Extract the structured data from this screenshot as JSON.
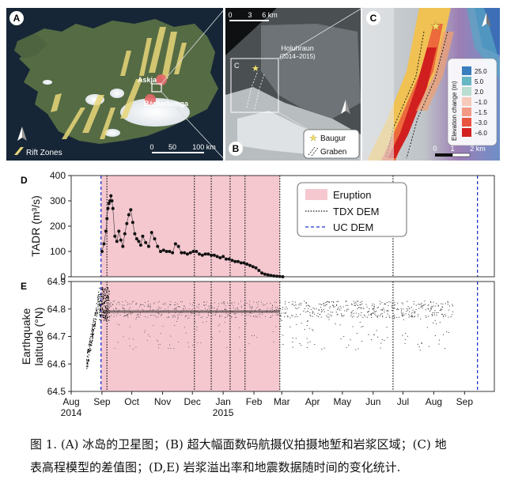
{
  "panel_labels": {
    "a": "A",
    "b": "B",
    "c": "C",
    "d": "D",
    "e": "E"
  },
  "panel_a": {
    "volcanoes": [
      "Askja",
      "Bárðarbunga"
    ],
    "legend_label": "Rift Zones",
    "scale_ticks": [
      "0",
      "50",
      "100 km"
    ]
  },
  "panel_b": {
    "scale_ticks": [
      "0",
      "3",
      "6 km"
    ],
    "place_name": "Holuhraun",
    "place_years": "(2014–2015)",
    "inset_label": "C",
    "legend": [
      "Baugur",
      "Graben"
    ]
  },
  "panel_c": {
    "legend_title": "Elevation change (m)",
    "legend_values": [
      "25.0",
      "5.0",
      "2.0",
      "−1.0",
      "−1.5",
      "−3.0",
      "−6.0"
    ],
    "legend_colors": [
      "#3a7ebf",
      "#66b7c4",
      "#b9ddd0",
      "#f6c9b8",
      "#f29a86",
      "#e8543f",
      "#d41f1f"
    ],
    "scale_ticks": [
      "0",
      "1",
      "2 km"
    ]
  },
  "chart_data": [
    {
      "type": "scatter",
      "panel": "D",
      "ylabel": "TADR (m³/s)",
      "ylim": [
        0,
        400
      ],
      "yticks": [
        "0",
        "100",
        "200",
        "300",
        "400"
      ],
      "x": [
        "2014-09-01",
        "2014-09-03",
        "2014-09-05",
        "2014-09-06",
        "2014-09-07",
        "2014-09-08",
        "2014-09-09",
        "2014-09-10",
        "2014-09-11",
        "2014-09-12",
        "2014-09-14",
        "2014-09-16",
        "2014-09-18",
        "2014-09-20",
        "2014-09-22",
        "2014-09-24",
        "2014-09-26",
        "2014-09-28",
        "2014-09-30",
        "2014-10-02",
        "2014-10-04",
        "2014-10-06",
        "2014-10-08",
        "2014-10-10",
        "2014-10-12",
        "2014-10-15",
        "2014-10-18",
        "2014-10-21",
        "2014-10-24",
        "2014-10-27",
        "2014-10-30",
        "2014-11-02",
        "2014-11-05",
        "2014-11-08",
        "2014-11-11",
        "2014-11-14",
        "2014-11-17",
        "2014-11-20",
        "2014-11-23",
        "2014-11-26",
        "2014-11-29",
        "2014-12-02",
        "2014-12-05",
        "2014-12-08",
        "2014-12-11",
        "2014-12-14",
        "2014-12-17",
        "2014-12-20",
        "2014-12-23",
        "2014-12-26",
        "2014-12-29",
        "2015-01-01",
        "2015-01-04",
        "2015-01-07",
        "2015-01-10",
        "2015-01-13",
        "2015-01-16",
        "2015-01-19",
        "2015-01-22",
        "2015-01-25",
        "2015-01-28",
        "2015-01-31",
        "2015-02-03",
        "2015-02-06",
        "2015-02-09",
        "2015-02-12",
        "2015-02-15",
        "2015-02-18",
        "2015-02-21",
        "2015-02-24",
        "2015-02-27",
        "2015-03-02"
      ],
      "values": [
        100,
        130,
        180,
        230,
        270,
        290,
        300,
        320,
        300,
        270,
        160,
        140,
        180,
        145,
        120,
        170,
        210,
        245,
        265,
        215,
        170,
        150,
        140,
        125,
        160,
        135,
        120,
        175,
        150,
        120,
        100,
        105,
        100,
        100,
        95,
        130,
        120,
        95,
        95,
        90,
        95,
        100,
        100,
        90,
        85,
        90,
        90,
        85,
        85,
        80,
        75,
        80,
        70,
        70,
        65,
        60,
        60,
        55,
        55,
        50,
        45,
        40,
        35,
        25,
        15,
        10,
        8,
        5,
        3,
        2,
        1,
        0
      ]
    },
    {
      "type": "scatter",
      "panel": "E",
      "ylabel": "Earthquake latitude (°N)",
      "ylim": [
        64.5,
        64.9
      ],
      "yticks": [
        "64.5",
        "64.6",
        "64.7",
        "64.8",
        "64.9"
      ],
      "xlim": [
        "2014-08-01",
        "2015-10-01"
      ],
      "xticks": [
        "Aug",
        "Sep",
        "Oct",
        "Nov",
        "Dec",
        "Jan",
        "Feb",
        "Mar",
        "Apr",
        "May",
        "Jun",
        "Jul",
        "Aug",
        "Sep"
      ],
      "xtick_years": [
        "2014",
        "2015"
      ]
    }
  ],
  "chart_legend": {
    "eruption_label": "Eruption",
    "eruption_color": "#f5c8d0",
    "tdx_label": "TDX DEM",
    "uc_label": "UC DEM",
    "uc_color": "#2233cc",
    "eruption_period": [
      "2014-08-31",
      "2015-02-27"
    ],
    "tdx_dates": [
      "2014-09-06",
      "2014-12-03",
      "2014-12-20",
      "2015-01-08",
      "2015-01-23",
      "2015-02-27",
      "2015-06-21"
    ],
    "uc_dates": [
      "2014-08-31",
      "2015-09-14"
    ]
  },
  "caption": {
    "line1": "图 1. (A) 冰岛的卫星图；(B) 超大幅面数码航摄仪拍摄地堑和岩浆区域；(C) 地",
    "line2": "表高程模型的差值图；(D,E) 岩浆溢出率和地震数据随时间的变化统计."
  }
}
